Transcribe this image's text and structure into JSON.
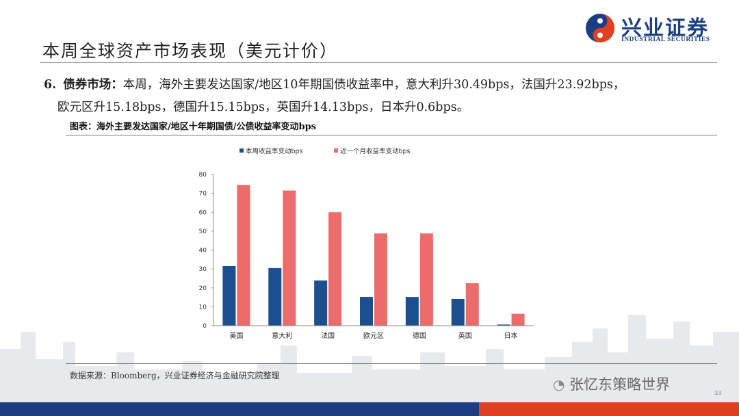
{
  "header": {
    "title": "本周全球资产市场表现（美元计价）",
    "logo_name": "兴业证券",
    "logo_sub": "INDUSTRIAL SECURITIES"
  },
  "body_point": {
    "number": "6.",
    "heading": "债券市场：",
    "line1": "本周，海外主要发达国家/地区10年期国债收益率中，意大利升30.49bps，法国升23.92bps，",
    "line2": "欧元区升15.18bps，德国升15.15bps，英国升14.13bps，日本升0.6bps。"
  },
  "figure": {
    "caption": "图表：海外主要发达国家/地区十年期国债/公债收益率变动bps",
    "source": "数据来源：Bloomberg，兴业证券经济与金融研究院整理"
  },
  "footer": {
    "watermark": "张忆东策略世界",
    "page_number": "33"
  },
  "colors": {
    "series_weekly": "#1b4f8f",
    "series_monthly": "#ec6b6b",
    "brand_blue": "#1b3d84",
    "brand_red": "#e0401f"
  },
  "chart_data": {
    "type": "bar",
    "categories": [
      "美国",
      "意大利",
      "法国",
      "欧元区",
      "德国",
      "英国",
      "日本"
    ],
    "series": [
      {
        "name": "本周收益率变动bps",
        "values": [
          31.5,
          30.49,
          23.92,
          15.18,
          15.15,
          14.13,
          0.6
        ]
      },
      {
        "name": "近一个月收益率变动bps",
        "values": [
          74.5,
          71.5,
          60,
          48.8,
          48.8,
          22.5,
          6.3
        ]
      }
    ],
    "ylim": [
      0,
      80
    ],
    "yticks": [
      0,
      10,
      20,
      30,
      40,
      50,
      60,
      70,
      80
    ],
    "legend_position": "top-center",
    "grid": false
  }
}
